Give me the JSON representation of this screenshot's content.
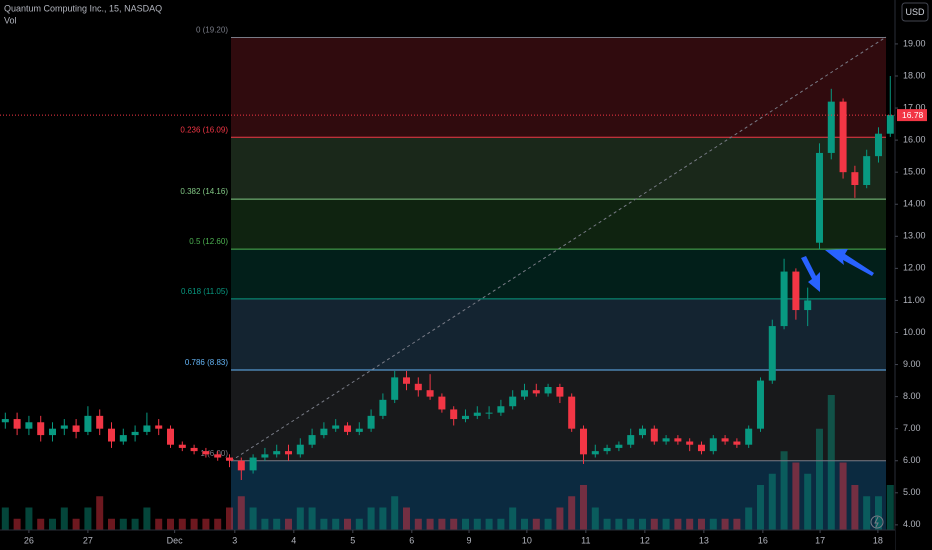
{
  "chart_data": {
    "type": "candlestick",
    "title": "Quantum Computing Inc., 15, NASDAQ",
    "volume_label": "Vol",
    "currency": "USD",
    "up_color": "#089981",
    "down_color": "#f23645",
    "x": [
      -0.4,
      -0.2,
      0,
      0.2,
      0.4,
      0.6,
      0.8,
      1,
      1.2,
      1.4,
      1.6,
      1.8,
      2,
      2.2,
      2.4,
      2.6,
      2.8,
      3,
      3.2,
      3.4,
      3.6,
      3.8,
      4,
      4.2,
      4.4,
      4.6,
      4.8,
      5,
      5.2,
      5.4,
      5.6,
      5.8,
      6,
      6.2,
      6.4,
      6.6,
      6.8,
      7,
      7.2,
      7.4,
      7.6,
      7.8,
      8,
      8.2,
      8.4,
      8.6,
      8.8,
      9,
      9.2,
      9.4,
      9.6,
      9.8,
      10,
      10.2,
      10.4,
      10.6,
      10.8,
      11,
      11.2,
      11.4,
      11.6,
      11.8,
      12,
      12.2,
      12.4,
      12.6,
      12.8,
      13,
      13.2,
      13.4,
      13.6,
      13.8,
      14,
      14.2,
      14.4,
      14.6
    ],
    "open": [
      7.2,
      7.3,
      7.0,
      7.2,
      6.8,
      7.0,
      7.1,
      6.9,
      7.4,
      7.0,
      6.6,
      6.8,
      6.9,
      7.1,
      7.0,
      6.5,
      6.4,
      6.3,
      6.2,
      6.1,
      6.0,
      5.7,
      6.1,
      6.2,
      6.3,
      6.2,
      6.5,
      6.8,
      7.0,
      7.1,
      6.9,
      7.0,
      7.4,
      7.9,
      8.6,
      8.4,
      8.2,
      8.0,
      7.6,
      7.3,
      7.4,
      7.5,
      7.5,
      7.7,
      8.0,
      8.2,
      8.1,
      8.3,
      8.0,
      7.0,
      6.2,
      6.3,
      6.4,
      6.5,
      6.8,
      7.0,
      6.6,
      6.7,
      6.6,
      6.5,
      6.3,
      6.7,
      6.6,
      6.5,
      7.0,
      8.5,
      10.2,
      11.9,
      10.7,
      12.8,
      15.6,
      17.2,
      15.0,
      14.6,
      15.5,
      16.2
    ],
    "high": [
      7.5,
      7.5,
      7.4,
      7.4,
      7.2,
      7.3,
      7.3,
      7.7,
      7.6,
      7.2,
      7.0,
      7.1,
      7.5,
      7.3,
      7.1,
      6.6,
      6.5,
      6.4,
      6.3,
      6.2,
      6.1,
      6.2,
      6.4,
      6.5,
      6.5,
      6.7,
      7.0,
      7.2,
      7.3,
      7.2,
      7.2,
      7.6,
      8.1,
      8.8,
      8.8,
      8.6,
      8.7,
      8.1,
      7.7,
      7.6,
      7.7,
      7.7,
      7.9,
      8.2,
      8.4,
      8.4,
      8.4,
      8.4,
      8.1,
      7.1,
      6.5,
      6.5,
      6.6,
      7.0,
      7.1,
      7.1,
      6.8,
      6.8,
      6.7,
      6.6,
      6.8,
      6.8,
      6.7,
      7.1,
      8.6,
      10.4,
      12.3,
      12.0,
      11.4,
      15.9,
      17.6,
      17.3,
      15.2,
      15.7,
      16.4,
      18.0
    ],
    "low": [
      7.0,
      6.8,
      6.8,
      6.6,
      6.6,
      6.8,
      6.7,
      6.8,
      6.8,
      6.4,
      6.5,
      6.6,
      6.8,
      6.8,
      6.4,
      6.3,
      6.2,
      6.1,
      6.0,
      5.8,
      5.4,
      5.6,
      6.0,
      6.1,
      6.0,
      6.1,
      6.4,
      6.7,
      6.9,
      6.8,
      6.8,
      6.9,
      7.3,
      7.8,
      8.2,
      8.0,
      7.9,
      7.5,
      7.1,
      7.2,
      7.3,
      7.3,
      7.4,
      7.6,
      7.9,
      8.0,
      8.0,
      7.8,
      6.9,
      5.9,
      6.1,
      6.2,
      6.3,
      6.4,
      6.7,
      6.5,
      6.5,
      6.5,
      6.3,
      6.2,
      6.2,
      6.5,
      6.4,
      6.4,
      6.9,
      8.4,
      10.1,
      10.4,
      10.2,
      12.6,
      15.4,
      14.8,
      14.2,
      14.5,
      15.3,
      16.1
    ],
    "close": [
      7.3,
      7.0,
      7.2,
      6.8,
      7.0,
      7.1,
      6.9,
      7.4,
      7.0,
      6.6,
      6.8,
      6.9,
      7.1,
      7.0,
      6.5,
      6.4,
      6.3,
      6.2,
      6.1,
      6.0,
      5.7,
      6.1,
      6.2,
      6.3,
      6.2,
      6.5,
      6.8,
      7.0,
      7.1,
      6.9,
      7.0,
      7.4,
      7.9,
      8.6,
      8.4,
      8.2,
      8.0,
      7.6,
      7.3,
      7.4,
      7.5,
      7.5,
      7.7,
      8.0,
      8.2,
      8.1,
      8.3,
      8.0,
      7.0,
      6.2,
      6.3,
      6.4,
      6.5,
      6.8,
      7.0,
      6.6,
      6.7,
      6.6,
      6.5,
      6.3,
      6.7,
      6.6,
      6.5,
      7.0,
      8.5,
      10.2,
      11.9,
      10.7,
      11.0,
      15.6,
      17.2,
      15.0,
      14.6,
      15.5,
      16.2,
      16.78
    ],
    "volume": [
      2,
      1,
      2,
      1,
      1,
      2,
      1,
      2,
      3,
      1,
      1,
      1,
      2,
      1,
      1,
      1,
      1,
      1,
      1,
      2,
      3,
      2,
      1,
      1,
      1,
      2,
      2,
      1,
      1,
      1,
      1,
      2,
      2,
      3,
      2,
      1,
      1,
      1,
      1,
      1,
      1,
      1,
      1,
      2,
      1,
      1,
      1,
      2,
      3,
      4,
      2,
      1,
      1,
      1,
      1,
      1,
      1,
      1,
      1,
      1,
      1,
      1,
      1,
      2,
      4,
      5,
      7,
      6,
      5,
      9,
      12,
      6,
      4,
      3,
      3,
      4
    ],
    "xlim": [
      -0.49,
      14.68
    ],
    "xticks": [
      {
        "value": 0,
        "label": "26"
      },
      {
        "value": 1,
        "label": "27"
      },
      {
        "value": 2.47,
        "label": "Dec"
      },
      {
        "value": 3.49,
        "label": "3"
      },
      {
        "value": 4.49,
        "label": "4"
      },
      {
        "value": 5.49,
        "label": "5"
      },
      {
        "value": 6.49,
        "label": "6"
      },
      {
        "value": 7.46,
        "label": "9"
      },
      {
        "value": 8.44,
        "label": "10"
      },
      {
        "value": 9.44,
        "label": "11"
      },
      {
        "value": 10.44,
        "label": "12"
      },
      {
        "value": 11.44,
        "label": "13"
      },
      {
        "value": 12.44,
        "label": "16"
      },
      {
        "value": 13.41,
        "label": "17"
      },
      {
        "value": 14.39,
        "label": "18"
      }
    ],
    "ylim": [
      3.84,
      20.37
    ],
    "yticks": [
      {
        "value": 4,
        "label": "4.00"
      },
      {
        "value": 5,
        "label": "5.00"
      },
      {
        "value": 6,
        "label": "6.00"
      },
      {
        "value": 7,
        "label": "7.00"
      },
      {
        "value": 8,
        "label": "8.00"
      },
      {
        "value": 9,
        "label": "9.00"
      },
      {
        "value": 10,
        "label": "10.00"
      },
      {
        "value": 11,
        "label": "11.00"
      },
      {
        "value": 12,
        "label": "12.00"
      },
      {
        "value": 13,
        "label": "13.00"
      },
      {
        "value": 14,
        "label": "14.00"
      },
      {
        "value": 15,
        "label": "15.00"
      },
      {
        "value": 16,
        "label": "16.00"
      },
      {
        "value": 17,
        "label": "17.00"
      },
      {
        "value": 18,
        "label": "18.00"
      },
      {
        "value": 19,
        "label": "19.00"
      }
    ],
    "last_price": 16.78,
    "fib_levels": [
      {
        "label": "0 (19.20)",
        "price": 19.2,
        "color": "#787b86"
      },
      {
        "label": "0.236 (16.09)",
        "price": 16.09,
        "color": "#f23645"
      },
      {
        "label": "0.382 (14.16)",
        "price": 14.16,
        "color": "#81c784"
      },
      {
        "label": "0.5 (12.60)",
        "price": 12.6,
        "color": "#4caf50"
      },
      {
        "label": "0.618 (11.05)",
        "price": 11.05,
        "color": "#089981"
      },
      {
        "label": "0.786 (8.83)",
        "price": 8.83,
        "color": "#64b5f6"
      },
      {
        "label": "1 (6.00)",
        "price": 6.0,
        "color": "#787b86"
      }
    ]
  }
}
